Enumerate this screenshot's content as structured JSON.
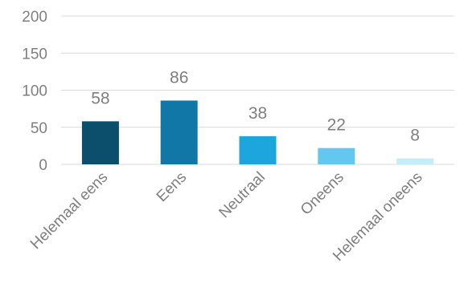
{
  "chart_data": {
    "type": "bar",
    "categories": [
      "Helemaal eens",
      "Eens",
      "Neutraal",
      "Oneens",
      "Helemaal oneens"
    ],
    "values": [
      58,
      86,
      38,
      22,
      8
    ],
    "data_labels": [
      "58",
      "86",
      "38",
      "22",
      "8"
    ],
    "bar_colors": [
      "#0b4f6c",
      "#1177a6",
      "#1da5dd",
      "#63c8ef",
      "#c6ecf9"
    ],
    "gridline_color": "#d9d9d9",
    "text_color": "#7f7f7f",
    "ylim": [
      0,
      200
    ],
    "yticks": [
      0,
      50,
      100,
      150,
      200
    ],
    "ytick_labels": [
      "0",
      "50",
      "100",
      "150",
      "200"
    ],
    "grid": true,
    "legend": "none"
  }
}
